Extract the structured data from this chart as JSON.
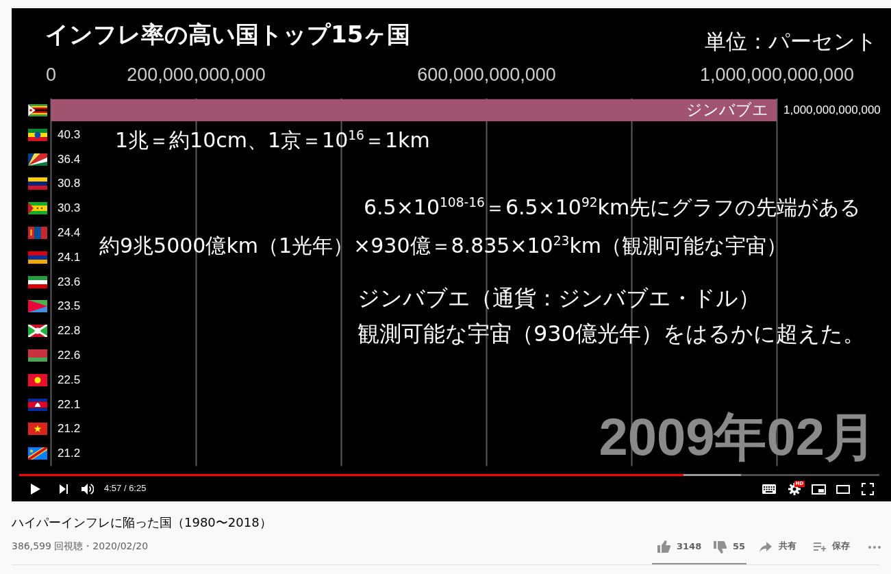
{
  "chart_data": {
    "type": "bar",
    "orientation": "horizontal",
    "title": "インフレ率の高い国トップ15ヶ国",
    "xlabel": "単位：パーセント",
    "categories": [
      "ジンバブエ",
      null,
      null,
      null,
      null,
      null,
      null,
      null,
      null,
      null,
      null,
      null,
      null,
      null,
      null
    ],
    "values": [
      1000000000000,
      40.3,
      36.4,
      30.8,
      30.3,
      24.4,
      24.1,
      23.6,
      23.5,
      22.8,
      22.6,
      22.5,
      22.1,
      21.2,
      21.2
    ],
    "value_labels": [
      "1,000,000,000,000",
      "40.3",
      "36.4",
      "30.8",
      "30.3",
      "24.4",
      "24.1",
      "23.6",
      "23.5",
      "22.8",
      "22.6",
      "22.5",
      "22.1",
      "21.2",
      "21.2"
    ],
    "color": "#a1546f",
    "xlim": [
      0,
      1000000000000
    ],
    "xticks": [
      0,
      {
        "value": 200000000000,
        "label": "200,000,000,000"
      },
      {
        "value": 400000000000,
        "label": null
      },
      {
        "value": 600000000000,
        "label": "600,000,000,000"
      },
      {
        "value": 800000000000,
        "label": null
      },
      {
        "value": 1000000000000,
        "label": "1,000,000,000,000"
      }
    ],
    "grid": "x",
    "tick_labels": "x",
    "annotations": [
      "1兆＝約10cm、1京＝10$^{16}$＝1km",
      "6.5×10$^{108-16}$＝6.5×10$^{92}$km先にグラフの先端がある",
      "約9兆5000億km（1光年）×930億＝8.835×10$^{23}$km（観測可能な宇宙）",
      "ジンバブエ（通貨：ジンバブエ・ドル）",
      "観測可能な宇宙（930億光年）をはるかに超えた。",
      "2009年02月",
      "4:57 / 6:25",
      "ハイパーインフレに陥った国（1980〜2018）",
      "386,599 回視聴・2020/02/20",
      "3148",
      "55",
      "共有",
      "保存",
      "HD"
    ]
  }
}
